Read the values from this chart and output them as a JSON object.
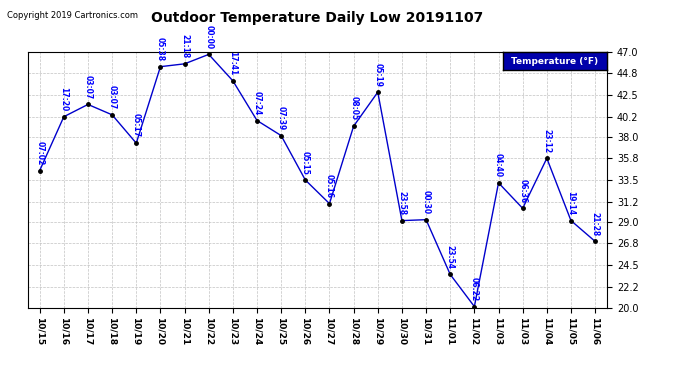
{
  "title": "Outdoor Temperature Daily Low 20191107",
  "copyright": "Copyright 2019 Cartronics.com",
  "legend_label": "Temperature (°F)",
  "x_labels": [
    "10/15",
    "10/16",
    "10/17",
    "10/18",
    "10/19",
    "10/20",
    "10/21",
    "10/22",
    "10/23",
    "10/24",
    "10/25",
    "10/26",
    "10/27",
    "10/28",
    "10/29",
    "10/30",
    "10/31",
    "11/01",
    "11/02",
    "11/03",
    "11/03",
    "11/04",
    "11/05",
    "11/06"
  ],
  "data_points": [
    {
      "x": 0,
      "temp": 34.5,
      "label": "07:02"
    },
    {
      "x": 1,
      "temp": 40.2,
      "label": "17:20"
    },
    {
      "x": 2,
      "temp": 41.5,
      "label": "03:07"
    },
    {
      "x": 3,
      "temp": 40.4,
      "label": "03:07"
    },
    {
      "x": 4,
      "temp": 37.4,
      "label": "05:17"
    },
    {
      "x": 5,
      "temp": 45.5,
      "label": "05:38"
    },
    {
      "x": 6,
      "temp": 45.8,
      "label": "21:18"
    },
    {
      "x": 7,
      "temp": 46.8,
      "label": "00:00"
    },
    {
      "x": 8,
      "temp": 44.0,
      "label": "17:41"
    },
    {
      "x": 9,
      "temp": 39.8,
      "label": "07:24"
    },
    {
      "x": 10,
      "temp": 38.2,
      "label": "07:39"
    },
    {
      "x": 11,
      "temp": 33.5,
      "label": "05:15"
    },
    {
      "x": 12,
      "temp": 31.0,
      "label": "05:16"
    },
    {
      "x": 13,
      "temp": 39.2,
      "label": "08:05"
    },
    {
      "x": 14,
      "temp": 42.8,
      "label": "05:19"
    },
    {
      "x": 15,
      "temp": 29.2,
      "label": "23:58"
    },
    {
      "x": 16,
      "temp": 29.3,
      "label": "00:30"
    },
    {
      "x": 17,
      "temp": 23.5,
      "label": "23:54"
    },
    {
      "x": 18,
      "temp": 20.1,
      "label": "06:22"
    },
    {
      "x": 19,
      "temp": 33.2,
      "label": "04:40"
    },
    {
      "x": 20,
      "temp": 30.5,
      "label": "06:36"
    },
    {
      "x": 21,
      "temp": 35.8,
      "label": "23:12"
    },
    {
      "x": 22,
      "temp": 29.2,
      "label": "19:14"
    },
    {
      "x": 23,
      "temp": 27.0,
      "label": "21:28"
    }
  ],
  "ylim": [
    20.0,
    47.0
  ],
  "yticks": [
    20.0,
    22.2,
    24.5,
    26.8,
    29.0,
    31.2,
    33.5,
    35.8,
    38.0,
    40.2,
    42.5,
    44.8,
    47.0
  ],
  "line_color": "#0000cc",
  "marker_color": "#000000",
  "bg_color": "#ffffff",
  "grid_color": "#bbbbbb",
  "label_color": "#0000ff",
  "title_color": "#000000",
  "copyright_color": "#000000",
  "legend_bg": "#0000aa",
  "legend_text_color": "#ffffff",
  "figsize": [
    6.9,
    3.75
  ],
  "dpi": 100
}
